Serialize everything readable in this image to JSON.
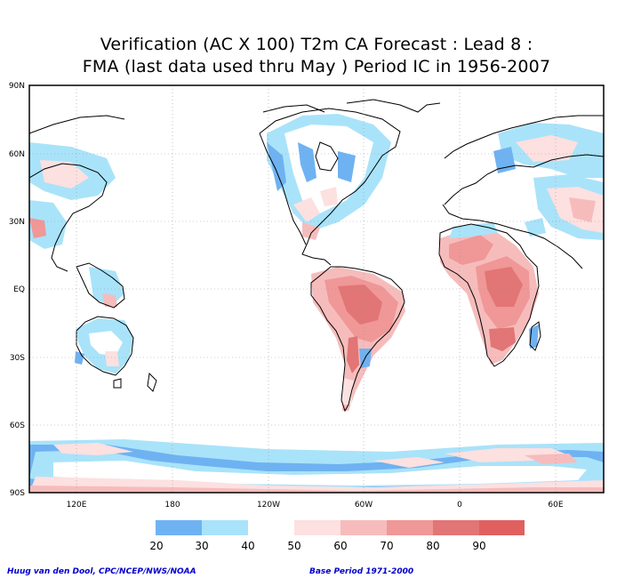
{
  "title": {
    "line1": "Verification (AC X 100) T2m CA Forecast : Lead 8 :",
    "line2": "FMA (last data used thru May ) Period IC in 1956-2007"
  },
  "map": {
    "lat_labels": [
      "90N",
      "60N",
      "30N",
      "EQ",
      "30S",
      "60S",
      "90S"
    ],
    "lon_labels": [
      "120E",
      "180",
      "120W",
      "60W",
      "0",
      "60E"
    ],
    "grid": "dotted",
    "colors": {
      "c20": "#6fb2f2",
      "c30": "#a9e3fa",
      "c40": "#ffffff",
      "c50": "#fde0e0",
      "c60": "#f6bcbc",
      "c70": "#f09797",
      "c80": "#e27575",
      "c90": "#aaaaaa",
      "coast": "#000000"
    }
  },
  "colorbar": {
    "labels": [
      "20",
      "30",
      "40",
      "50",
      "60",
      "70",
      "80",
      "90"
    ],
    "colors": [
      "#6fb2f2",
      "#a9e3fa",
      "#ffffff",
      "#fde0e0",
      "#f6bcbc",
      "#f09797",
      "#e27575",
      "#e06060",
      "#aaaaaa"
    ]
  },
  "credits": {
    "left": "Huug van den Dool, CPC/NCEP/NWS/NOAA",
    "right": "Base Period 1971-2000"
  }
}
